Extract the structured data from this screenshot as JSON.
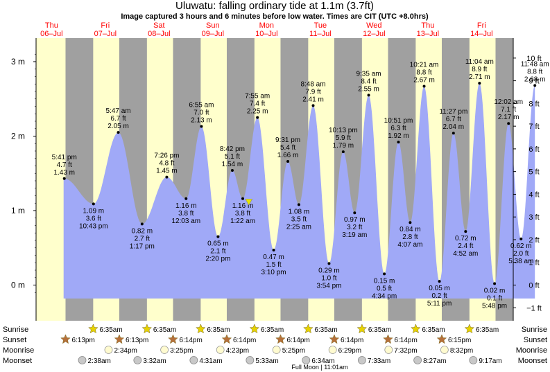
{
  "header": {
    "title": "Uluwatu: falling  ordinary tide at 1.1m (3.7ft)",
    "subtitle": "Image captured 3 hours and 6 minutes before low water. Times are CIT (UTC +8.0hrs)"
  },
  "colors": {
    "day": "#ffffcc",
    "night": "#a0a0a0",
    "tide": "#a0a9f7",
    "day_label": "#ff0000",
    "current_marker": "#e6e600",
    "sun_icon": "#e6d200",
    "sunset_icon": "#b5703a",
    "moonrise_icon": "#fffbd0",
    "moonset_icon": "#c8c8c8"
  },
  "days": [
    {
      "name": "Thu",
      "date": "06–Jul"
    },
    {
      "name": "Fri",
      "date": "07–Jul"
    },
    {
      "name": "Sat",
      "date": "08–Jul"
    },
    {
      "name": "Sun",
      "date": "09–Jul"
    },
    {
      "name": "Mon",
      "date": "10–Jul"
    },
    {
      "name": "Tue",
      "date": "11–Jul"
    },
    {
      "name": "Wed",
      "date": "12–Jul"
    },
    {
      "name": "Thu",
      "date": "13–Jul"
    },
    {
      "name": "Fri",
      "date": "14–Jul"
    }
  ],
  "chart_data": {
    "type": "area",
    "title": "Uluwatu: falling  ordinary tide at 1.1m (3.7ft)",
    "y_left": {
      "unit": "m",
      "range": [
        -0.2,
        3.3
      ],
      "ticks": [
        {
          "v": 0,
          "label": "0 m"
        },
        {
          "v": 1,
          "label": "1 m"
        },
        {
          "v": 2,
          "label": "2 m"
        },
        {
          "v": 3,
          "label": "3 m"
        }
      ]
    },
    "y_right": {
      "unit": "ft",
      "ticks": [
        "−1 ft",
        "0 ft",
        "1 ft",
        "2 ft",
        "3 ft",
        "4 ft",
        "5 ft",
        "6 ft",
        "7 ft",
        "8 ft",
        "9 ft",
        "10 ft"
      ]
    },
    "current": {
      "day": 4.17,
      "height_m": 1.1
    },
    "tides": [
      {
        "day": 0.737,
        "m": 1.43,
        "lines": [
          "5:41 pm",
          "4.7 ft",
          "1.43 m"
        ],
        "type": "high"
      },
      {
        "day": 1.2806,
        "m": 1.09,
        "lines": [
          "1.09 m",
          "3.6 ft",
          "10:43 pm"
        ],
        "type": "low"
      },
      {
        "day": 1.741,
        "m": 2.05,
        "lines": [
          "5:47 am",
          "6.7 ft",
          "2.05 m"
        ],
        "type": "high"
      },
      {
        "day": 2.1833,
        "m": 0.82,
        "lines": [
          "0.82 m",
          "2.7 ft",
          "1:17 pm"
        ],
        "type": "low"
      },
      {
        "day": 2.6431,
        "m": 1.45,
        "lines": [
          "7:26 pm",
          "4.8 ft",
          "1.45 m"
        ],
        "type": "high"
      },
      {
        "day": 3.0021,
        "m": 1.16,
        "lines": [
          "1.16 m",
          "3.8 ft",
          "12:03 am"
        ],
        "type": "low"
      },
      {
        "day": 3.2882,
        "m": 2.13,
        "lines": [
          "6:55 am",
          "7.0 ft",
          "2.13 m"
        ],
        "type": "high"
      },
      {
        "day": 3.5972,
        "m": 0.65,
        "lines": [
          "0.65 m",
          "2.1 ft",
          "2:20 pm"
        ],
        "type": "low"
      },
      {
        "day": 3.8625,
        "m": 1.54,
        "lines": [
          "8:42 pm",
          "5.1 ft",
          "1.54 m"
        ],
        "type": "high"
      },
      {
        "day": 4.0569,
        "m": 1.16,
        "lines": [
          "1.16 m",
          "3.8 ft",
          "1:22 am"
        ],
        "type": "low"
      },
      {
        "day": 4.3299,
        "m": 2.25,
        "lines": [
          "7:55 am",
          "7.4 ft",
          "2.25 m"
        ],
        "type": "high"
      },
      {
        "day": 4.6319,
        "m": 0.47,
        "lines": [
          "0.47 m",
          "1.5 ft",
          "3:10 pm"
        ],
        "type": "low"
      },
      {
        "day": 4.8965,
        "m": 1.66,
        "lines": [
          "9:31 pm",
          "5.4 ft",
          "1.66 m"
        ],
        "type": "high"
      },
      {
        "day": 5.1007,
        "m": 1.08,
        "lines": [
          "1.08 m",
          "3.5 ft",
          "2:25 am"
        ],
        "type": "low"
      },
      {
        "day": 5.3667,
        "m": 2.41,
        "lines": [
          "8:48 am",
          "7.9 ft",
          "2.41 m"
        ],
        "type": "high"
      },
      {
        "day": 5.6625,
        "m": 0.29,
        "lines": [
          "0.29 m",
          "1.0 ft",
          "3:54 pm"
        ],
        "type": "low"
      },
      {
        "day": 5.9257,
        "m": 1.79,
        "lines": [
          "10:13 pm",
          "5.9 ft",
          "1.79 m"
        ],
        "type": "high"
      },
      {
        "day": 6.1382,
        "m": 0.97,
        "lines": [
          "0.97 m",
          "3.2 ft",
          "3:19 am"
        ],
        "type": "low"
      },
      {
        "day": 6.3993,
        "m": 2.55,
        "lines": [
          "9:35 am",
          "8.4 ft",
          "2.55 m"
        ],
        "type": "high"
      },
      {
        "day": 6.6903,
        "m": 0.15,
        "lines": [
          "0.15 m",
          "0.5 ft",
          "4:34 pm"
        ],
        "type": "low"
      },
      {
        "day": 6.9535,
        "m": 1.92,
        "lines": [
          "10:51 pm",
          "6.3 ft",
          "1.92 m"
        ],
        "type": "high"
      },
      {
        "day": 7.1715,
        "m": 0.84,
        "lines": [
          "0.84 m",
          "2.8 ft",
          "4:07 am"
        ],
        "type": "low"
      },
      {
        "day": 7.4313,
        "m": 2.67,
        "lines": [
          "10:21 am",
          "8.8 ft",
          "2.67 m"
        ],
        "type": "high"
      },
      {
        "day": 7.716,
        "m": 0.05,
        "lines": [
          "0.05 m",
          "0.2 ft",
          "5:11 pm"
        ],
        "type": "low"
      },
      {
        "day": 7.9771,
        "m": 2.04,
        "lines": [
          "11:27 pm",
          "6.7 ft",
          "2.04 m"
        ],
        "type": "high"
      },
      {
        "day": 8.2028,
        "m": 0.72,
        "lines": [
          "0.72 m",
          "2.4 ft",
          "4:52 am"
        ],
        "type": "low"
      },
      {
        "day": 8.4611,
        "m": 2.71,
        "lines": [
          "11:04 am",
          "8.9 ft",
          "2.71 m"
        ],
        "type": "high"
      },
      {
        "day": 8.7417,
        "m": 0.02,
        "lines": [
          "0.02 m",
          "0.1 ft",
          "5:48 pm"
        ],
        "type": "low"
      },
      {
        "day": 9.0014,
        "m": 2.17,
        "lines": [
          "12:02 am",
          "7.1 ft",
          "2.17 m"
        ],
        "type": "high"
      },
      {
        "day": 9.2347,
        "m": 0.62,
        "lines": [
          "0.62 m",
          "2.0 ft",
          "5:38 am"
        ],
        "type": "low"
      },
      {
        "day": 9.4917,
        "m": 2.68,
        "lines": [
          "11:48 am",
          "8.8 ft",
          "2.68 m"
        ],
        "type": "high"
      }
    ],
    "sunrise_day_fraction": 0.2743,
    "sunset_day_fraction": 0.7597
  },
  "rows": {
    "labels": [
      "Sunrise",
      "Sunset",
      "Moonrise",
      "Moonset"
    ],
    "sunrise": [
      {
        "day": 1,
        "time": "6:35am"
      },
      {
        "day": 2,
        "time": "6:35am"
      },
      {
        "day": 3,
        "time": "6:35am"
      },
      {
        "day": 4,
        "time": "6:35am"
      },
      {
        "day": 5,
        "time": "6:35am"
      },
      {
        "day": 6,
        "time": "6:35am"
      },
      {
        "day": 7,
        "time": "6:35am"
      },
      {
        "day": 8,
        "time": "6:35am"
      }
    ],
    "sunset": [
      {
        "day": 0,
        "time": "6:13pm"
      },
      {
        "day": 1,
        "time": "6:13pm"
      },
      {
        "day": 2,
        "time": "6:14pm"
      },
      {
        "day": 3,
        "time": "6:14pm"
      },
      {
        "day": 4,
        "time": "6:14pm"
      },
      {
        "day": 5,
        "time": "6:14pm"
      },
      {
        "day": 6,
        "time": "6:14pm"
      },
      {
        "day": 7,
        "time": "6:15pm"
      }
    ],
    "moonrise": [
      {
        "day": 1,
        "time": "2:34pm"
      },
      {
        "day": 2,
        "time": "3:25pm"
      },
      {
        "day": 3,
        "time": "4:23pm"
      },
      {
        "day": 4,
        "time": "5:25pm"
      },
      {
        "day": 5,
        "time": "6:29pm"
      },
      {
        "day": 6,
        "time": "7:32pm"
      },
      {
        "day": 7,
        "time": "8:32pm"
      }
    ],
    "moonset": [
      {
        "day": 1,
        "time": "2:38am"
      },
      {
        "day": 2,
        "time": "3:32am"
      },
      {
        "day": 3,
        "time": "4:31am"
      },
      {
        "day": 4,
        "time": "5:33am"
      },
      {
        "day": 5,
        "time": "6:34am"
      },
      {
        "day": 6,
        "time": "7:33am"
      },
      {
        "day": 7,
        "time": "8:27am"
      },
      {
        "day": 8,
        "time": "9:17am"
      }
    ],
    "moon_phase": "Full Moon | 11:01am"
  }
}
